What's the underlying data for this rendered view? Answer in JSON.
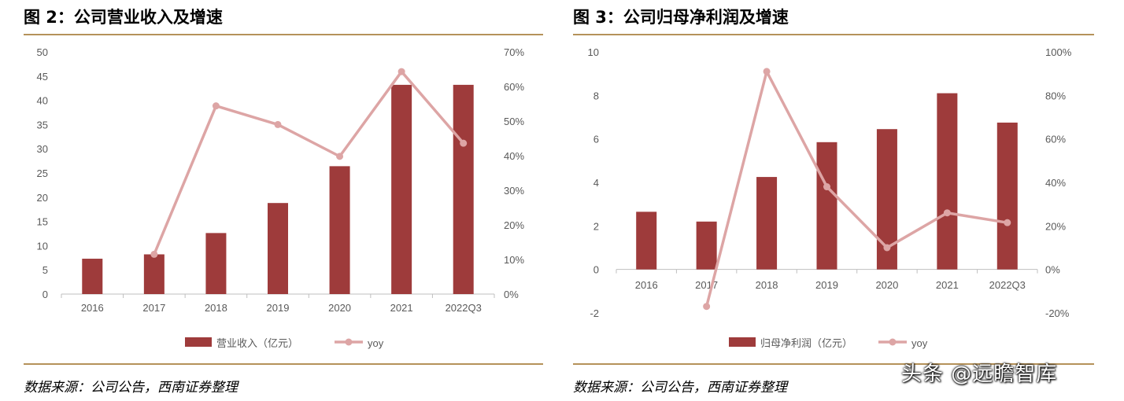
{
  "panels": [
    {
      "title": "图 2：公司营业收入及增速",
      "source": "数据来源：公司公告，西南证券整理"
    },
    {
      "title": "图 3：公司归母净利润及增速",
      "source": "数据来源：公司公告，西南证券整理"
    }
  ],
  "watermark": "头条 @远瞻智库",
  "colors": {
    "bar": "#9e3b3b",
    "line": "#dda5a5",
    "rule": "#b5925a",
    "axis_text": "#595959"
  },
  "chart_data": [
    {
      "type": "bar",
      "categories": [
        "2016",
        "2017",
        "2018",
        "2019",
        "2020",
        "2021",
        "2022Q3"
      ],
      "series": [
        {
          "name": "营业收入（亿元）",
          "type": "bar",
          "axis": "left",
          "values": [
            7.3,
            8.2,
            12.6,
            18.8,
            26.4,
            43.2,
            43.2
          ]
        },
        {
          "name": "yoy",
          "type": "line",
          "axis": "right",
          "values": [
            null,
            11.5,
            54.4,
            49.0,
            39.8,
            64.3,
            43.6
          ]
        }
      ],
      "left_axis": {
        "min": 0,
        "max": 50,
        "step": 5,
        "tick_labels": [
          "0",
          "5",
          "10",
          "15",
          "20",
          "25",
          "30",
          "35",
          "40",
          "45",
          "50"
        ]
      },
      "right_axis": {
        "min": 0,
        "max": 70,
        "step": 10,
        "tick_labels": [
          "0%",
          "10%",
          "20%",
          "30%",
          "40%",
          "50%",
          "60%",
          "70%"
        ]
      },
      "legend": [
        "营业收入（亿元）",
        "yoy"
      ],
      "legend_position": "bottom",
      "grid": false
    },
    {
      "type": "bar",
      "categories": [
        "2016",
        "2017",
        "2018",
        "2019",
        "2020",
        "2021",
        "2022Q3"
      ],
      "series": [
        {
          "name": "归母净利润（亿元）",
          "type": "bar",
          "axis": "left",
          "values": [
            2.65,
            2.2,
            4.25,
            5.85,
            6.45,
            8.1,
            6.75
          ]
        },
        {
          "name": "yoy",
          "type": "line",
          "axis": "right",
          "values": [
            null,
            -17,
            91,
            38,
            10,
            26,
            21.5
          ]
        }
      ],
      "left_axis": {
        "min": -2,
        "max": 10,
        "step": 2,
        "tick_labels": [
          "-2",
          "0",
          "2",
          "4",
          "6",
          "8",
          "10"
        ]
      },
      "right_axis": {
        "min": -20,
        "max": 100,
        "step": 20,
        "tick_labels": [
          "-20%",
          "0%",
          "20%",
          "40%",
          "60%",
          "80%",
          "100%"
        ]
      },
      "legend": [
        "归母净利润（亿元）",
        "yoy"
      ],
      "legend_position": "bottom",
      "grid": false
    }
  ]
}
